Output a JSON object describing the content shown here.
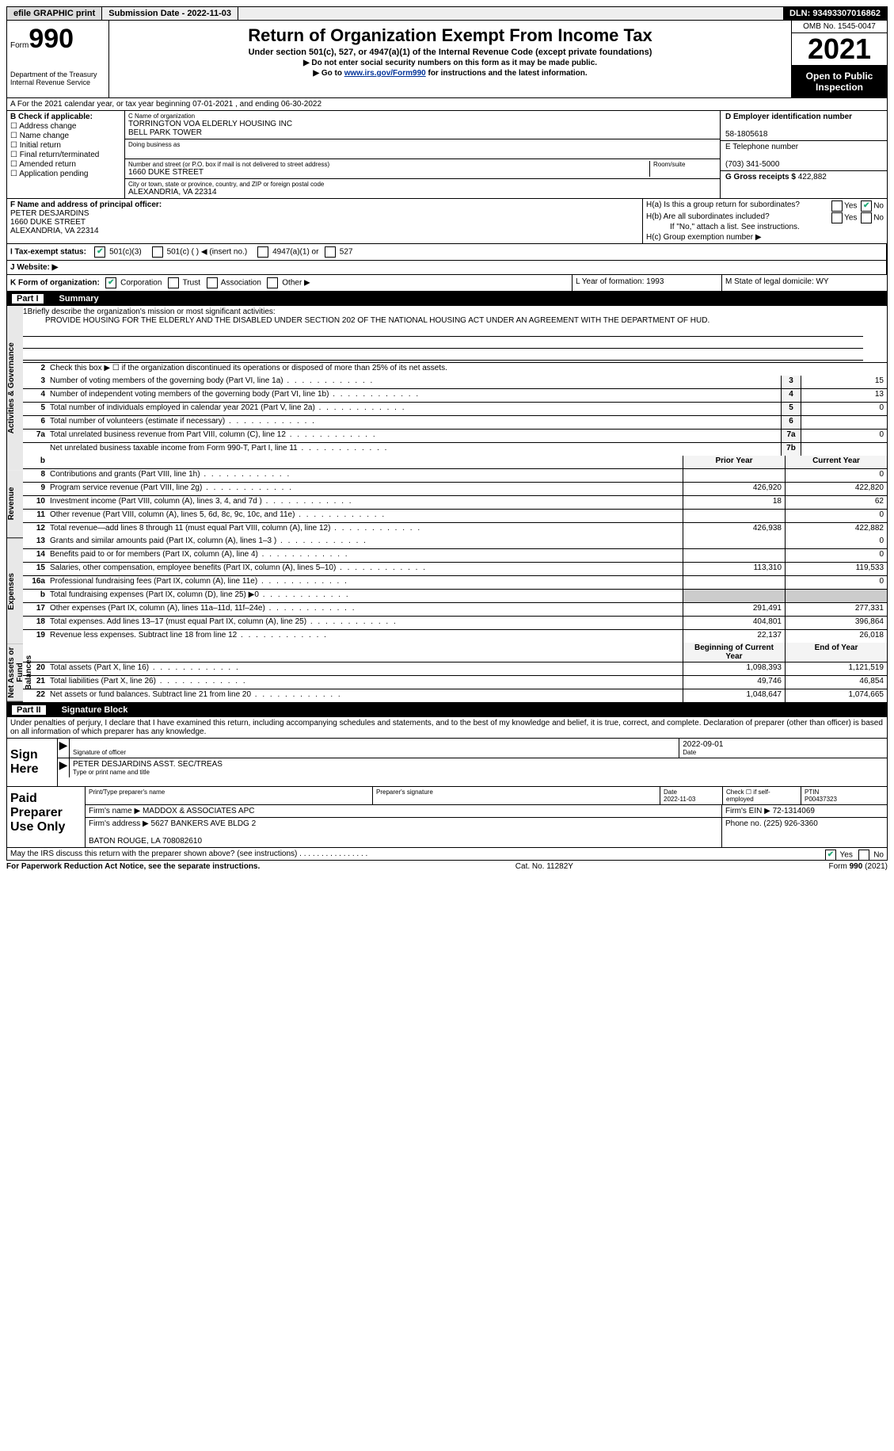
{
  "topbar": {
    "efile": "efile GRAPHIC print",
    "submission": "Submission Date - 2022-11-03",
    "dln": "DLN: 93493307016862"
  },
  "header": {
    "form_label": "Form",
    "form_no": "990",
    "dept": "Department of the Treasury\nInternal Revenue Service",
    "title": "Return of Organization Exempt From Income Tax",
    "sub1": "Under section 501(c), 527, or 4947(a)(1) of the Internal Revenue Code (except private foundations)",
    "sub2": "▶ Do not enter social security numbers on this form as it may be made public.",
    "sub3_pre": "▶ Go to ",
    "sub3_link": "www.irs.gov/Form990",
    "sub3_post": " for instructions and the latest information.",
    "omb": "OMB No. 1545-0047",
    "year": "2021",
    "open": "Open to Public Inspection"
  },
  "line_a": "A For the 2021 calendar year, or tax year beginning 07-01-2021   , and ending 06-30-2022",
  "col_b": {
    "title": "B Check if applicable:",
    "items": [
      "Address change",
      "Name change",
      "Initial return",
      "Final return/terminated",
      "Amended return",
      "Application pending"
    ]
  },
  "col_c": {
    "name_lbl": "C Name of organization",
    "name1": "TORRINGTON VOA ELDERLY HOUSING INC",
    "name2": "BELL PARK TOWER",
    "dba_lbl": "Doing business as",
    "addr_lbl": "Number and street (or P.O. box if mail is not delivered to street address)",
    "room_lbl": "Room/suite",
    "addr": "1660 DUKE STREET",
    "city_lbl": "City or town, state or province, country, and ZIP or foreign postal code",
    "city": "ALEXANDRIA, VA  22314"
  },
  "col_de": {
    "d_lbl": "D Employer identification number",
    "ein": "58-1805618",
    "e_lbl": "E Telephone number",
    "phone": "(703) 341-5000",
    "g_lbl": "G Gross receipts $",
    "gross": "422,882"
  },
  "col_f": {
    "lbl": "F Name and address of principal officer:",
    "name": "PETER DESJARDINS",
    "addr1": "1660 DUKE STREET",
    "addr2": "ALEXANDRIA, VA  22314"
  },
  "col_h": {
    "ha": "H(a)  Is this a group return for subordinates?",
    "hb": "H(b)  Are all subordinates included?",
    "hb_note": "If \"No,\" attach a list. See instructions.",
    "hc": "H(c)  Group exemption number ▶"
  },
  "row_i": {
    "lbl": "I  Tax-exempt status:",
    "o1": "501(c)(3)",
    "o2": "501(c) (  ) ◀ (insert no.)",
    "o3": "4947(a)(1) or",
    "o4": "527"
  },
  "row_j": "J  Website: ▶",
  "row_k": {
    "lbl": "K Form of organization:",
    "o1": "Corporation",
    "o2": "Trust",
    "o3": "Association",
    "o4": "Other ▶"
  },
  "row_l": "L Year of formation: 1993",
  "row_m": "M State of legal domicile: WY",
  "part1": {
    "pt": "Part I",
    "title": "Summary"
  },
  "summary": {
    "line1_lbl": "Briefly describe the organization's mission or most significant activities:",
    "mission": "PROVIDE HOUSING FOR THE ELDERLY AND THE DISABLED UNDER SECTION 202 OF THE NATIONAL HOUSING ACT UNDER AN AGREEMENT WITH THE DEPARTMENT OF HUD.",
    "line2": "Check this box ▶ ☐ if the organization discontinued its operations or disposed of more than 25% of its net assets.",
    "rows_ag": [
      {
        "n": "3",
        "d": "Number of voting members of the governing body (Part VI, line 1a)",
        "bn": "3",
        "v": "15"
      },
      {
        "n": "4",
        "d": "Number of independent voting members of the governing body (Part VI, line 1b)",
        "bn": "4",
        "v": "13"
      },
      {
        "n": "5",
        "d": "Total number of individuals employed in calendar year 2021 (Part V, line 2a)",
        "bn": "5",
        "v": "0"
      },
      {
        "n": "6",
        "d": "Total number of volunteers (estimate if necessary)",
        "bn": "6",
        "v": ""
      },
      {
        "n": "7a",
        "d": "Total unrelated business revenue from Part VIII, column (C), line 12",
        "bn": "7a",
        "v": "0"
      },
      {
        "n": "",
        "d": "Net unrelated business taxable income from Form 990-T, Part I, line 11",
        "bn": "7b",
        "v": ""
      }
    ],
    "py_hdr": "Prior Year",
    "cy_hdr": "Current Year",
    "rows_rev": [
      {
        "n": "8",
        "d": "Contributions and grants (Part VIII, line 1h)",
        "py": "",
        "cy": "0"
      },
      {
        "n": "9",
        "d": "Program service revenue (Part VIII, line 2g)",
        "py": "426,920",
        "cy": "422,820"
      },
      {
        "n": "10",
        "d": "Investment income (Part VIII, column (A), lines 3, 4, and 7d )",
        "py": "18",
        "cy": "62"
      },
      {
        "n": "11",
        "d": "Other revenue (Part VIII, column (A), lines 5, 6d, 8c, 9c, 10c, and 11e)",
        "py": "",
        "cy": "0"
      },
      {
        "n": "12",
        "d": "Total revenue—add lines 8 through 11 (must equal Part VIII, column (A), line 12)",
        "py": "426,938",
        "cy": "422,882"
      }
    ],
    "rows_exp": [
      {
        "n": "13",
        "d": "Grants and similar amounts paid (Part IX, column (A), lines 1–3 )",
        "py": "",
        "cy": "0"
      },
      {
        "n": "14",
        "d": "Benefits paid to or for members (Part IX, column (A), line 4)",
        "py": "",
        "cy": "0"
      },
      {
        "n": "15",
        "d": "Salaries, other compensation, employee benefits (Part IX, column (A), lines 5–10)",
        "py": "113,310",
        "cy": "119,533"
      },
      {
        "n": "16a",
        "d": "Professional fundraising fees (Part IX, column (A), line 11e)",
        "py": "",
        "cy": "0"
      },
      {
        "n": "b",
        "d": "Total fundraising expenses (Part IX, column (D), line 25) ▶0",
        "py": "SHADE",
        "cy": "SHADE"
      },
      {
        "n": "17",
        "d": "Other expenses (Part IX, column (A), lines 11a–11d, 11f–24e)",
        "py": "291,491",
        "cy": "277,331"
      },
      {
        "n": "18",
        "d": "Total expenses. Add lines 13–17 (must equal Part IX, column (A), line 25)",
        "py": "404,801",
        "cy": "396,864"
      },
      {
        "n": "19",
        "d": "Revenue less expenses. Subtract line 18 from line 12",
        "py": "22,137",
        "cy": "26,018"
      }
    ],
    "bcy_hdr": "Beginning of Current Year",
    "eoy_hdr": "End of Year",
    "rows_na": [
      {
        "n": "20",
        "d": "Total assets (Part X, line 16)",
        "py": "1,098,393",
        "cy": "1,121,519"
      },
      {
        "n": "21",
        "d": "Total liabilities (Part X, line 26)",
        "py": "49,746",
        "cy": "46,854"
      },
      {
        "n": "22",
        "d": "Net assets or fund balances. Subtract line 21 from line 20",
        "py": "1,048,647",
        "cy": "1,074,665"
      }
    ],
    "vtabs": [
      "Activities & Governance",
      "Revenue",
      "Expenses",
      "Net Assets or Fund Balances"
    ]
  },
  "part2": {
    "pt": "Part II",
    "title": "Signature Block"
  },
  "sig": {
    "penalties": "Under penalties of perjury, I declare that I have examined this return, including accompanying schedules and statements, and to the best of my knowledge and belief, it is true, correct, and complete. Declaration of preparer (other than officer) is based on all information of which preparer has any knowledge.",
    "sign_here": "Sign Here",
    "sig_officer_lbl": "Signature of officer",
    "date": "2022-09-01",
    "date_lbl": "Date",
    "name_title": "PETER DESJARDINS  ASST. SEC/TREAS",
    "name_title_lbl": "Type or print name and title"
  },
  "paid": {
    "lbl": "Paid Preparer Use Only",
    "r1": {
      "c1": "Print/Type preparer's name",
      "c2": "Preparer's signature",
      "c3": "Date\n2022-11-03",
      "c4": "Check ☐ if self-employed",
      "c5": "PTIN\nP00437323"
    },
    "r2": {
      "c1": "Firm's name    ▶ MADDOX & ASSOCIATES APC",
      "c2": "Firm's EIN ▶ 72-1314069"
    },
    "r3": {
      "c1": "Firm's address ▶ 5627 BANKERS AVE BLDG 2\n\nBATON ROUGE, LA  708082610",
      "c2": "Phone no. (225) 926-3360"
    }
  },
  "may_irs": "May the IRS discuss this return with the preparer shown above? (see instructions)  .  .  .  .  .  .  .  .  .  .  .  .  .  .  .  .",
  "footer": {
    "l": "For Paperwork Reduction Act Notice, see the separate instructions.",
    "c": "Cat. No. 11282Y",
    "r": "Form 990 (2021)"
  },
  "yes": "Yes",
  "no": "No"
}
